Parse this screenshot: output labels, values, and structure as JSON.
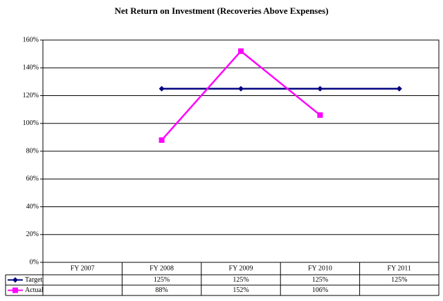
{
  "chart_data": {
    "type": "line",
    "title": "Net Return on Investment (Recoveries Above Expenses)",
    "categories": [
      "FY 2007",
      "FY 2008",
      "FY 2009",
      "FY 2010",
      "FY 2011"
    ],
    "series": [
      {
        "name": "Target",
        "color": "#000080",
        "marker": "diamond",
        "values": [
          null,
          125,
          125,
          125,
          125
        ],
        "value_labels": [
          null,
          "125%",
          "125%",
          "125%",
          "125%"
        ]
      },
      {
        "name": "Actual",
        "color": "#ff00ff",
        "marker": "square",
        "values": [
          null,
          88,
          152,
          106,
          null
        ],
        "value_labels": [
          null,
          "88%",
          "152%",
          "106%",
          null
        ]
      }
    ],
    "ylim": [
      0,
      160
    ],
    "yticks": [
      {
        "value": 0,
        "label": "0%"
      },
      {
        "value": 20,
        "label": "20%"
      },
      {
        "value": 40,
        "label": "40%"
      },
      {
        "value": 60,
        "label": "60%"
      },
      {
        "value": 80,
        "label": "80%"
      },
      {
        "value": 100,
        "label": "100%"
      },
      {
        "value": 120,
        "label": "120%"
      },
      {
        "value": 140,
        "label": "140%"
      },
      {
        "value": 160,
        "label": "160%"
      }
    ],
    "grid": true
  }
}
